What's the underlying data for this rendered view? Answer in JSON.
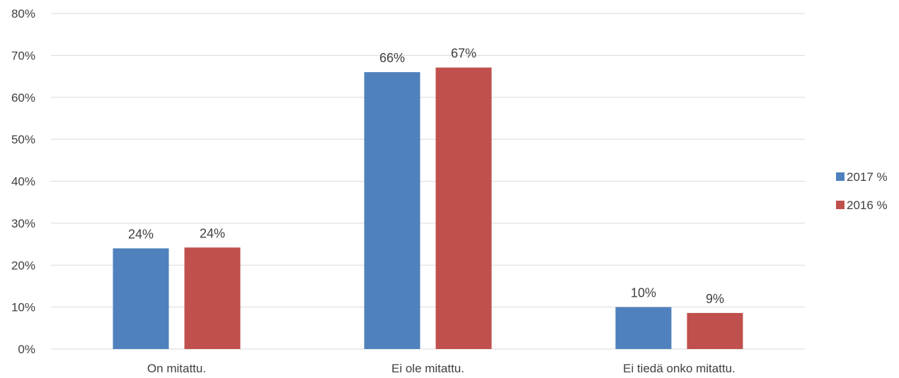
{
  "chart_data": {
    "type": "bar",
    "categories": [
      "On mitattu.",
      "Ei ole mitattu.",
      "Ei tiedä onko mitattu."
    ],
    "series": [
      {
        "name": "2017 %",
        "color": "#4f81bd",
        "values": [
          24,
          66,
          10
        ],
        "labels": [
          "24%",
          "66%",
          "10%"
        ]
      },
      {
        "name": "2016 %",
        "color": "#c0504d",
        "values": [
          24.2,
          67.1,
          8.6
        ],
        "labels": [
          "24%",
          "67%",
          "9%"
        ]
      }
    ],
    "y_ticks": [
      "0%",
      "10%",
      "20%",
      "30%",
      "40%",
      "50%",
      "60%",
      "70%",
      "80%"
    ],
    "ylim": [
      0,
      80
    ],
    "grid": true,
    "legend_position": "right"
  }
}
